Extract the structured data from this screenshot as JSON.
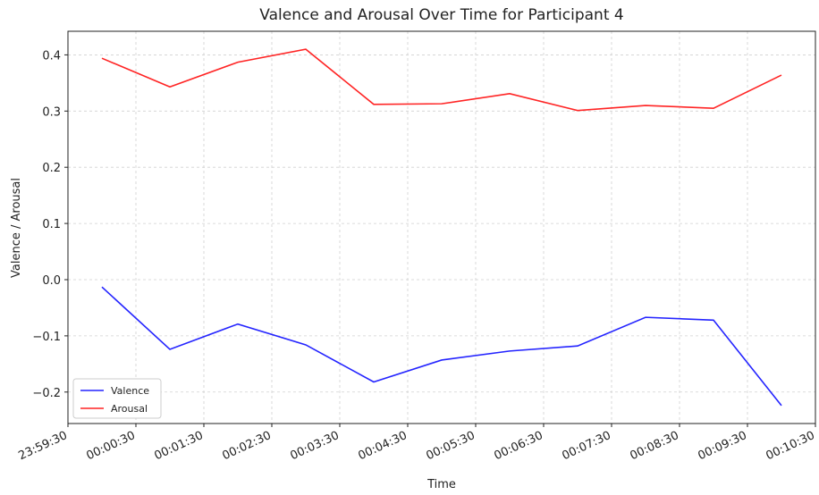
{
  "chart_data": {
    "type": "line",
    "title": "Valence and Arousal Over Time for Participant 4",
    "xlabel": "Time",
    "ylabel": "Valence / Arousal",
    "x": [
      "00:00:00",
      "00:01:00",
      "00:02:00",
      "00:03:00",
      "00:04:00",
      "00:05:00",
      "00:06:00",
      "00:07:00",
      "00:08:00",
      "00:09:00",
      "00:10:00"
    ],
    "series": [
      {
        "name": "Valence",
        "color": "#2424ff",
        "values": [
          -0.013,
          -0.124,
          -0.079,
          -0.116,
          -0.182,
          -0.143,
          -0.127,
          -0.118,
          -0.067,
          -0.072,
          -0.224
        ]
      },
      {
        "name": "Arousal",
        "color": "#ff2424",
        "values": [
          0.394,
          0.343,
          0.387,
          0.41,
          0.312,
          0.313,
          0.331,
          0.301,
          0.31,
          0.305,
          0.364
        ]
      }
    ],
    "xlim": [
      "23:59:30",
      "00:10:30"
    ],
    "xticks": [
      "23:59:30",
      "00:00:30",
      "00:01:30",
      "00:02:30",
      "00:03:30",
      "00:04:30",
      "00:05:30",
      "00:06:30",
      "00:07:30",
      "00:08:30",
      "00:09:30",
      "00:10:30"
    ],
    "ylim": [
      -0.256,
      0.442
    ],
    "yticks": [
      {
        "value": -0.2,
        "label": "−0.2"
      },
      {
        "value": -0.1,
        "label": "−0.1"
      },
      {
        "value": 0,
        "label": "0.0"
      },
      {
        "value": 0.1,
        "label": "0.1"
      },
      {
        "value": 0.2,
        "label": "0.2"
      },
      {
        "value": 0.3,
        "label": "0.3"
      },
      {
        "value": 0.4,
        "label": "0.4"
      }
    ],
    "grid": true,
    "legend": "lower left"
  }
}
